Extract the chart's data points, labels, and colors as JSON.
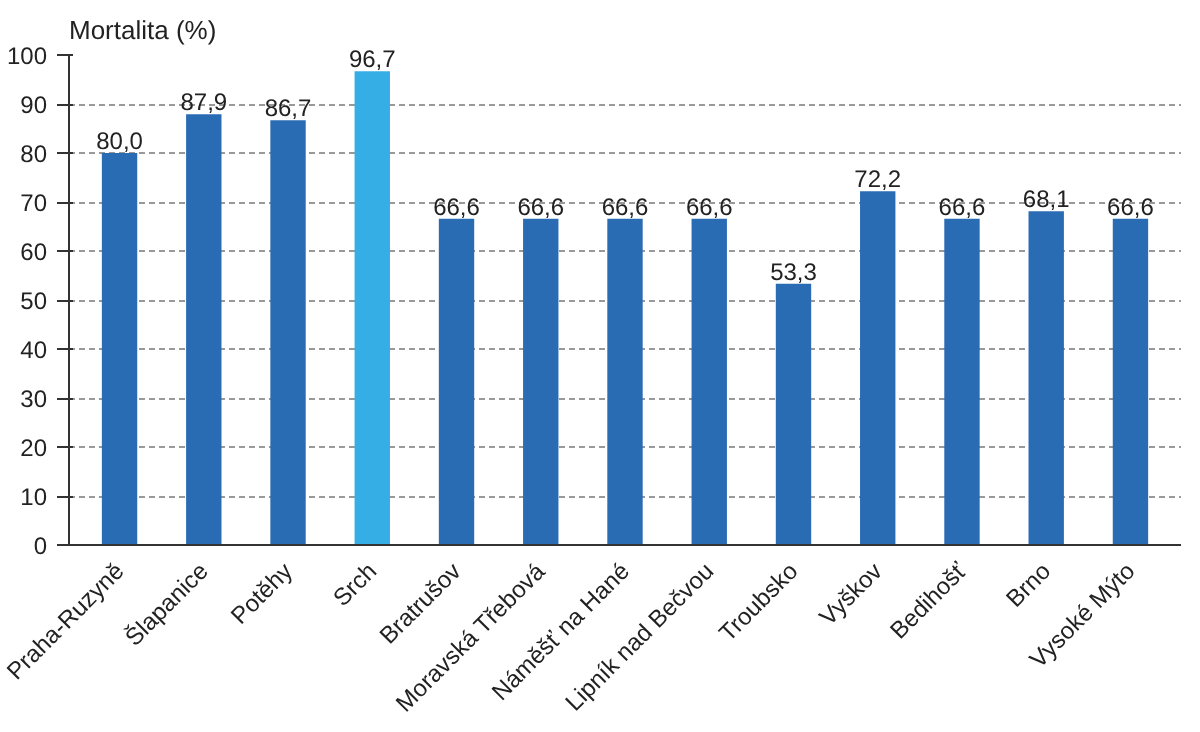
{
  "chart_data": {
    "type": "bar",
    "ylabel": "Mortalita (%)",
    "categories": [
      "Praha-Ruzyně",
      "Šlapanice",
      "Potěhy",
      "Srch",
      "Bratrušov",
      "Moravská Třebová",
      "Náměšť na Hané",
      "Lipník nad Bečvou",
      "Troubsko",
      "Vyškov",
      "Bedihošť",
      "Brno",
      "Vysoké Mýto"
    ],
    "values": [
      80.0,
      87.9,
      86.7,
      96.7,
      66.6,
      66.6,
      66.6,
      66.6,
      53.3,
      72.2,
      66.6,
      68.1,
      66.6
    ],
    "colors": [
      "#2a6cb4",
      "#2a6cb4",
      "#2a6cb4",
      "#35aee6",
      "#2a6cb4",
      "#2a6cb4",
      "#2a6cb4",
      "#2a6cb4",
      "#2a6cb4",
      "#2a6cb4",
      "#2a6cb4",
      "#2a6cb4",
      "#2a6cb4"
    ],
    "value_labels": [
      "80,0",
      "87,9",
      "86,7",
      "96,7",
      "66,6",
      "66,6",
      "66,6",
      "66,6",
      "53,3",
      "72,2",
      "66,6",
      "68,1",
      "66,6"
    ],
    "ylim": [
      0,
      100
    ],
    "yticks": [
      0,
      10,
      20,
      30,
      40,
      50,
      60,
      70,
      80,
      90,
      100
    ],
    "grid": "y"
  }
}
